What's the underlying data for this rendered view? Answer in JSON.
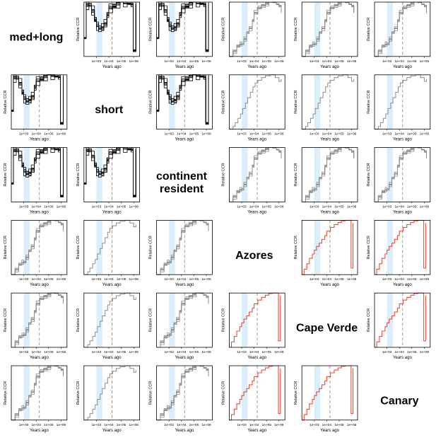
{
  "panel_labels": [
    "med+long",
    "short",
    "continent resident",
    "Azores",
    "Cape Verde",
    "Canary"
  ],
  "panel_labels_lines": [
    [
      "med+long"
    ],
    [
      "short"
    ],
    [
      "continent",
      "resident"
    ],
    [
      "Azores"
    ],
    [
      "Cape Verde"
    ],
    [
      "Canary"
    ]
  ],
  "colors": {
    "black": "#000000",
    "grey": "#8c8c8c",
    "red": "#e8503a",
    "shade": "#dbeefb",
    "dashed": "#999999"
  },
  "chart_data": {
    "type": "line",
    "layout": "6x6 pairwise matrix (diagonal = population labels)",
    "xlabel": "Years ago",
    "ylabel": "Relative CCR",
    "x_scale": "log",
    "xlim": [
      100,
      3000000
    ],
    "ylim": [
      0,
      1
    ],
    "x_tick_labels": [
      "1e+03",
      "1e+04",
      "1e+05",
      "1e+06"
    ],
    "shaded_interval": [
      1000,
      3000
    ],
    "dashed_line_x": 18000,
    "profiles": {
      "black": {
        "x": [
          100,
          150,
          250,
          400,
          700,
          1000,
          1500,
          2500,
          4000,
          7000,
          10000,
          20000,
          40000,
          80000,
          150000,
          300000,
          600000,
          900000,
          1500000
        ],
        "y": [
          0.35,
          0.95,
          0.92,
          0.85,
          0.7,
          0.55,
          0.5,
          0.55,
          0.62,
          0.75,
          0.88,
          0.95,
          0.98,
          1.0,
          1.0,
          0.98,
          0.95,
          0.1,
          0.97
        ]
      },
      "grey": {
        "x": [
          100,
          200,
          400,
          700,
          1000,
          1500,
          2500,
          4000,
          7000,
          10000,
          20000,
          40000,
          80000,
          150000,
          300000,
          600000,
          1000000,
          1500000
        ],
        "y": [
          0.0,
          0.1,
          0.17,
          0.22,
          0.25,
          0.32,
          0.42,
          0.52,
          0.68,
          0.8,
          0.88,
          0.95,
          0.98,
          1.0,
          1.0,
          0.97,
          0.93,
          0.8
        ]
      },
      "grey-thin": {
        "x": [
          100,
          200,
          300,
          500,
          800,
          1200,
          2000,
          3000,
          5000,
          8000,
          12000,
          20000,
          40000,
          80000,
          200000,
          500000,
          1000000,
          1500000
        ],
        "y": [
          0.0,
          0.05,
          0.12,
          0.2,
          0.28,
          0.38,
          0.48,
          0.58,
          0.68,
          0.78,
          0.85,
          0.9,
          0.95,
          0.98,
          1.0,
          0.95,
          0.88,
          0.92
        ]
      },
      "red": {
        "x": [
          100,
          150,
          250,
          400,
          700,
          1000,
          1500,
          2500,
          4000,
          7000,
          10000,
          20000,
          40000,
          80000,
          150000,
          300000,
          600000,
          900000,
          1300000
        ],
        "y": [
          0.0,
          0.1,
          0.2,
          0.3,
          0.38,
          0.45,
          0.52,
          0.58,
          0.65,
          0.72,
          0.8,
          0.87,
          0.92,
          0.96,
          0.99,
          1.0,
          1.0,
          0.12,
          0.95
        ]
      }
    },
    "matrix": [
      [
        "label",
        "black",
        "black",
        "grey",
        "grey",
        "grey"
      ],
      [
        "black",
        "label",
        "black",
        "grey-thin",
        "grey-thin",
        "grey-thin"
      ],
      [
        "black",
        "black",
        "label",
        "grey",
        "grey",
        "grey"
      ],
      [
        "grey",
        "grey-thin",
        "grey",
        "label",
        "red",
        "red"
      ],
      [
        "grey",
        "grey-thin",
        "grey",
        "red",
        "label",
        "red"
      ],
      [
        "grey",
        "grey-thin",
        "grey",
        "red",
        "red",
        "label"
      ]
    ]
  }
}
